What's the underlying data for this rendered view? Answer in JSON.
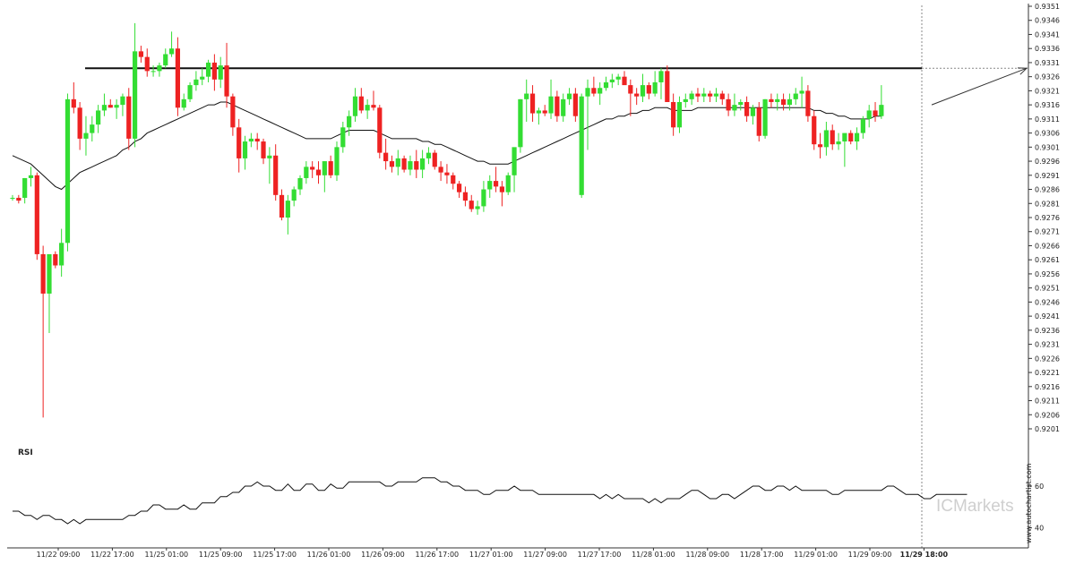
{
  "colors": {
    "bull": "#33dd33",
    "bear": "#ee2222",
    "ma": "#111111",
    "level": "#111111",
    "axis": "#333333",
    "grid_dash": "#888888",
    "brand": "#cfcfcf"
  },
  "brand": {
    "name": "ICMarkets",
    "vertical_text": "www.autochartist.com"
  },
  "chart_data": [
    {
      "type": "candlestick",
      "title": "",
      "price_axis": {
        "range": [
          0.9201,
          0.9351
        ],
        "ticks": [
          "0.9351",
          "0.9346",
          "0.9341",
          "0.9336",
          "0.9331",
          "0.9326",
          "0.9321",
          "0.9316",
          "0.9311",
          "0.9306",
          "0.9301",
          "0.9296",
          "0.9291",
          "0.9286",
          "0.9281",
          "0.9276",
          "0.9271",
          "0.9266",
          "0.9261",
          "0.9256",
          "0.9251",
          "0.9246",
          "0.9241",
          "0.9236",
          "0.9231",
          "0.9226",
          "0.9221",
          "0.9216",
          "0.9211",
          "0.9206",
          "0.9201"
        ]
      },
      "time_axis": {
        "ticks": [
          "11/22 09:00",
          "11/22 17:00",
          "11/25 01:00",
          "11/25 09:00",
          "11/25 17:00",
          "11/26 01:00",
          "11/26 09:00",
          "11/26 17:00",
          "11/27 01:00",
          "11/27 09:00",
          "11/27 17:00",
          "11/28 01:00",
          "11/28 09:00",
          "11/28 17:00",
          "11/29 01:00",
          "11/29 09:00",
          "11/29 18:00"
        ],
        "highlight": "11/29 18:00"
      },
      "resistance_level": 0.9329,
      "projection": {
        "from": 0.9316,
        "to": 0.9329
      },
      "candles": [
        [
          0.9283,
          0.9284,
          0.9282,
          0.9283
        ],
        [
          0.9283,
          0.9284,
          0.9281,
          0.9282
        ],
        [
          0.9283,
          0.929,
          0.9281,
          0.929
        ],
        [
          0.929,
          0.9294,
          0.9287,
          0.9291
        ],
        [
          0.9291,
          0.9292,
          0.9261,
          0.9263
        ],
        [
          0.9263,
          0.9266,
          0.9205,
          0.9249
        ],
        [
          0.9249,
          0.9262,
          0.9235,
          0.9263
        ],
        [
          0.9263,
          0.9264,
          0.9258,
          0.9259
        ],
        [
          0.9259,
          0.9272,
          0.9255,
          0.9267
        ],
        [
          0.9267,
          0.932,
          0.9264,
          0.9318
        ],
        [
          0.9318,
          0.9324,
          0.9313,
          0.9315
        ],
        [
          0.9315,
          0.9317,
          0.93,
          0.9304
        ],
        [
          0.9304,
          0.9312,
          0.9298,
          0.9306
        ],
        [
          0.9306,
          0.9312,
          0.9303,
          0.9309
        ],
        [
          0.9309,
          0.9316,
          0.9306,
          0.9314
        ],
        [
          0.9314,
          0.932,
          0.9312,
          0.9316
        ],
        [
          0.9316,
          0.9318,
          0.9315,
          0.9315
        ],
        [
          0.9315,
          0.9318,
          0.9311,
          0.9316
        ],
        [
          0.9316,
          0.932,
          0.9312,
          0.9319
        ],
        [
          0.9319,
          0.9322,
          0.93,
          0.9304
        ],
        [
          0.9304,
          0.9345,
          0.9301,
          0.9335
        ],
        [
          0.9335,
          0.9337,
          0.9331,
          0.9333
        ],
        [
          0.9333,
          0.9336,
          0.9326,
          0.9328
        ],
        [
          0.9328,
          0.933,
          0.9326,
          0.9328
        ],
        [
          0.9328,
          0.9331,
          0.9326,
          0.933
        ],
        [
          0.933,
          0.9336,
          0.9329,
          0.9334
        ],
        [
          0.9334,
          0.9342,
          0.9333,
          0.9336
        ],
        [
          0.9336,
          0.934,
          0.9312,
          0.9315
        ],
        [
          0.9315,
          0.932,
          0.9314,
          0.9318
        ],
        [
          0.9318,
          0.9324,
          0.9317,
          0.9323
        ],
        [
          0.9323,
          0.9328,
          0.9321,
          0.9325
        ],
        [
          0.9325,
          0.9329,
          0.9323,
          0.9326
        ],
        [
          0.9326,
          0.9332,
          0.9324,
          0.9331
        ],
        [
          0.9331,
          0.9334,
          0.9321,
          0.9325
        ],
        [
          0.9325,
          0.9333,
          0.9322,
          0.933
        ],
        [
          0.933,
          0.9338,
          0.9315,
          0.9319
        ],
        [
          0.9319,
          0.932,
          0.9305,
          0.9308
        ],
        [
          0.9308,
          0.9311,
          0.9292,
          0.9297
        ],
        [
          0.9297,
          0.9305,
          0.9293,
          0.9303
        ],
        [
          0.9303,
          0.9306,
          0.9301,
          0.9304
        ],
        [
          0.9304,
          0.9306,
          0.93,
          0.9303
        ],
        [
          0.9303,
          0.9304,
          0.9295,
          0.9297
        ],
        [
          0.9297,
          0.9301,
          0.9288,
          0.9298
        ],
        [
          0.9298,
          0.9302,
          0.9282,
          0.9284
        ],
        [
          0.9284,
          0.9286,
          0.9275,
          0.9276
        ],
        [
          0.9276,
          0.9284,
          0.927,
          0.9282
        ],
        [
          0.9282,
          0.9287,
          0.928,
          0.9286
        ],
        [
          0.9286,
          0.9291,
          0.9284,
          0.929
        ],
        [
          0.929,
          0.9296,
          0.9288,
          0.9294
        ],
        [
          0.9294,
          0.9296,
          0.929,
          0.9293
        ],
        [
          0.9293,
          0.9296,
          0.9288,
          0.9291
        ],
        [
          0.9291,
          0.9296,
          0.9285,
          0.9296
        ],
        [
          0.9296,
          0.9298,
          0.929,
          0.9291
        ],
        [
          0.9291,
          0.9303,
          0.9289,
          0.9301
        ],
        [
          0.9301,
          0.931,
          0.9299,
          0.9308
        ],
        [
          0.9308,
          0.9314,
          0.9305,
          0.9312
        ],
        [
          0.9312,
          0.9322,
          0.931,
          0.9319
        ],
        [
          0.9319,
          0.9322,
          0.9313,
          0.9314
        ],
        [
          0.9314,
          0.9318,
          0.9311,
          0.9316
        ],
        [
          0.9316,
          0.9321,
          0.9314,
          0.9315
        ],
        [
          0.9315,
          0.9316,
          0.9297,
          0.9299
        ],
        [
          0.9299,
          0.9304,
          0.9293,
          0.9296
        ],
        [
          0.9296,
          0.9298,
          0.9292,
          0.9294
        ],
        [
          0.9294,
          0.93,
          0.9291,
          0.9297
        ],
        [
          0.9297,
          0.9298,
          0.9292,
          0.9293
        ],
        [
          0.9293,
          0.9298,
          0.9291,
          0.9296
        ],
        [
          0.9296,
          0.93,
          0.929,
          0.9293
        ],
        [
          0.9293,
          0.93,
          0.929,
          0.9297
        ],
        [
          0.9297,
          0.9301,
          0.9295,
          0.9299
        ],
        [
          0.9299,
          0.93,
          0.9293,
          0.9294
        ],
        [
          0.9294,
          0.9296,
          0.9289,
          0.9292
        ],
        [
          0.9292,
          0.9295,
          0.9288,
          0.9291
        ],
        [
          0.9291,
          0.9292,
          0.9286,
          0.9288
        ],
        [
          0.9288,
          0.9289,
          0.9283,
          0.9285
        ],
        [
          0.9285,
          0.9287,
          0.928,
          0.9282
        ],
        [
          0.9282,
          0.9284,
          0.9278,
          0.9279
        ],
        [
          0.9279,
          0.9282,
          0.9277,
          0.928
        ],
        [
          0.928,
          0.9289,
          0.9278,
          0.9286
        ],
        [
          0.9286,
          0.9291,
          0.9283,
          0.9289
        ],
        [
          0.9289,
          0.9294,
          0.9285,
          0.9287
        ],
        [
          0.9287,
          0.9289,
          0.928,
          0.9285
        ],
        [
          0.9285,
          0.9292,
          0.9284,
          0.9291
        ],
        [
          0.9291,
          0.93,
          0.9285,
          0.9301
        ],
        [
          0.9301,
          0.9318,
          0.9299,
          0.9318
        ],
        [
          0.9318,
          0.9325,
          0.931,
          0.932
        ],
        [
          0.932,
          0.9323,
          0.931,
          0.9313
        ],
        [
          0.9313,
          0.9315,
          0.9309,
          0.9314
        ],
        [
          0.9314,
          0.9316,
          0.9312,
          0.9313
        ],
        [
          0.9313,
          0.9325,
          0.9311,
          0.9319
        ],
        [
          0.9319,
          0.9321,
          0.931,
          0.9312
        ],
        [
          0.9312,
          0.932,
          0.931,
          0.9318
        ],
        [
          0.9318,
          0.9322,
          0.9316,
          0.932
        ],
        [
          0.932,
          0.9322,
          0.931,
          0.9312
        ],
        [
          0.9284,
          0.932,
          0.9283,
          0.9319
        ],
        [
          0.9319,
          0.9325,
          0.93,
          0.9322
        ],
        [
          0.9322,
          0.9326,
          0.9319,
          0.932
        ],
        [
          0.932,
          0.9324,
          0.9316,
          0.9322
        ],
        [
          0.9322,
          0.9326,
          0.9321,
          0.9324
        ],
        [
          0.9324,
          0.9327,
          0.9322,
          0.9325
        ],
        [
          0.9325,
          0.9327,
          0.9323,
          0.9326
        ],
        [
          0.9326,
          0.9328,
          0.9324,
          0.9323
        ],
        [
          0.9323,
          0.9325,
          0.9312,
          0.932
        ],
        [
          0.932,
          0.9322,
          0.9316,
          0.9319
        ],
        [
          0.9319,
          0.9327,
          0.9317,
          0.9323
        ],
        [
          0.9323,
          0.9324,
          0.9318,
          0.932
        ],
        [
          0.932,
          0.9328,
          0.9319,
          0.9324
        ],
        [
          0.9324,
          0.9329,
          0.9318,
          0.9328
        ],
        [
          0.9328,
          0.933,
          0.9317,
          0.9317
        ],
        [
          0.9317,
          0.932,
          0.9305,
          0.9308
        ],
        [
          0.9308,
          0.9319,
          0.9306,
          0.9317
        ],
        [
          0.9317,
          0.932,
          0.9315,
          0.9318
        ],
        [
          0.9318,
          0.9321,
          0.9316,
          0.932
        ],
        [
          0.932,
          0.9322,
          0.9317,
          0.9319
        ],
        [
          0.9319,
          0.9322,
          0.9317,
          0.932
        ],
        [
          0.932,
          0.9321,
          0.9317,
          0.9319
        ],
        [
          0.9319,
          0.9322,
          0.9317,
          0.932
        ],
        [
          0.932,
          0.9321,
          0.9316,
          0.9318
        ],
        [
          0.9318,
          0.932,
          0.9312,
          0.9314
        ],
        [
          0.9314,
          0.932,
          0.9312,
          0.9316
        ],
        [
          0.9316,
          0.9318,
          0.9314,
          0.9317
        ],
        [
          0.9317,
          0.9319,
          0.931,
          0.9312
        ],
        [
          0.9312,
          0.9316,
          0.9309,
          0.9315
        ],
        [
          0.9315,
          0.9317,
          0.9303,
          0.9305
        ],
        [
          0.9305,
          0.9318,
          0.9304,
          0.9318
        ],
        [
          0.9318,
          0.932,
          0.9315,
          0.9317
        ],
        [
          0.9317,
          0.932,
          0.9314,
          0.9318
        ],
        [
          0.9318,
          0.932,
          0.9314,
          0.9316
        ],
        [
          0.9316,
          0.932,
          0.9314,
          0.9318
        ],
        [
          0.9318,
          0.9322,
          0.9316,
          0.932
        ],
        [
          0.932,
          0.9326,
          0.9315,
          0.9321
        ],
        [
          0.9321,
          0.9323,
          0.931,
          0.9312
        ],
        [
          0.9312,
          0.9314,
          0.93,
          0.9302
        ],
        [
          0.9302,
          0.9306,
          0.9297,
          0.9301
        ],
        [
          0.9301,
          0.931,
          0.9298,
          0.9307
        ],
        [
          0.9307,
          0.9309,
          0.93,
          0.9302
        ],
        [
          0.9302,
          0.9306,
          0.93,
          0.9303
        ],
        [
          0.9303,
          0.9305,
          0.9294,
          0.9306
        ],
        [
          0.9306,
          0.9307,
          0.9302,
          0.9303
        ],
        [
          0.9303,
          0.9308,
          0.93,
          0.9306
        ],
        [
          0.9306,
          0.9312,
          0.9304,
          0.9311
        ],
        [
          0.9311,
          0.9316,
          0.9308,
          0.9314
        ],
        [
          0.9314,
          0.9317,
          0.931,
          0.9312
        ],
        [
          0.9312,
          0.9323,
          0.9311,
          0.9316
        ]
      ],
      "moving_average": [
        0.9298,
        0.9297,
        0.9296,
        0.9295,
        0.9293,
        0.9291,
        0.9289,
        0.9287,
        0.9286,
        0.9288,
        0.929,
        0.9292,
        0.9293,
        0.9294,
        0.9295,
        0.9296,
        0.9297,
        0.9298,
        0.93,
        0.9301,
        0.9303,
        0.9304,
        0.9306,
        0.9307,
        0.9308,
        0.9309,
        0.931,
        0.9311,
        0.9312,
        0.9313,
        0.9314,
        0.9315,
        0.9316,
        0.9316,
        0.9317,
        0.9317,
        0.9316,
        0.9315,
        0.9314,
        0.9313,
        0.9312,
        0.9311,
        0.931,
        0.9309,
        0.9308,
        0.9307,
        0.9306,
        0.9305,
        0.9304,
        0.9304,
        0.9304,
        0.9304,
        0.9304,
        0.9305,
        0.9306,
        0.9307,
        0.9307,
        0.9307,
        0.9307,
        0.9307,
        0.9306,
        0.9305,
        0.9304,
        0.9304,
        0.9304,
        0.9304,
        0.9304,
        0.9303,
        0.9303,
        0.9302,
        0.9302,
        0.9301,
        0.93,
        0.9299,
        0.9298,
        0.9297,
        0.9296,
        0.9296,
        0.9295,
        0.9295,
        0.9295,
        0.9295,
        0.9296,
        0.9297,
        0.9298,
        0.9299,
        0.93,
        0.9301,
        0.9302,
        0.9303,
        0.9304,
        0.9305,
        0.9306,
        0.9307,
        0.9308,
        0.9309,
        0.931,
        0.9311,
        0.9311,
        0.9312,
        0.9312,
        0.9313,
        0.9313,
        0.9314,
        0.9314,
        0.9315,
        0.9315,
        0.9315,
        0.9314,
        0.9314,
        0.9314,
        0.9314,
        0.9315,
        0.9315,
        0.9315,
        0.9315,
        0.9315,
        0.9315,
        0.9315,
        0.9315,
        0.9315,
        0.9315,
        0.9315,
        0.9315,
        0.9315,
        0.9315,
        0.9315,
        0.9315,
        0.9315,
        0.9315,
        0.9315,
        0.9314,
        0.9314,
        0.9313,
        0.9313,
        0.9312,
        0.9312,
        0.9311,
        0.9311,
        0.9311,
        0.9311,
        0.9312,
        0.9312
      ]
    },
    {
      "type": "line",
      "title": "RSI",
      "y_ticks": [
        "60",
        "40"
      ],
      "ylim": [
        33,
        72
      ],
      "values": [
        48,
        48,
        46,
        46,
        44,
        46,
        46,
        44,
        44,
        42,
        44,
        42,
        44,
        44,
        44,
        44,
        44,
        44,
        44,
        46,
        46,
        48,
        48,
        51,
        51,
        49,
        49,
        49,
        51,
        49,
        49,
        52,
        52,
        52,
        55,
        55,
        57,
        57,
        60,
        60,
        62,
        60,
        60,
        58,
        58,
        61,
        58,
        58,
        61,
        61,
        58,
        58,
        61,
        59,
        59,
        62,
        62,
        62,
        62,
        62,
        62,
        60,
        60,
        62,
        62,
        62,
        62,
        64,
        64,
        64,
        62,
        62,
        60,
        60,
        58,
        58,
        58,
        56,
        56,
        58,
        58,
        58,
        60,
        58,
        58,
        58,
        56,
        56,
        56,
        56,
        56,
        56,
        56,
        56,
        56,
        56,
        54,
        56,
        54,
        56,
        54,
        54,
        54,
        54,
        52,
        54,
        52,
        54,
        54,
        54,
        56,
        58,
        58,
        56,
        54,
        54,
        56,
        56,
        54,
        56,
        58,
        60,
        60,
        58,
        58,
        60,
        60,
        58,
        60,
        58,
        58,
        58,
        58,
        58,
        56,
        56,
        58,
        58,
        58,
        58,
        58,
        58,
        58,
        60,
        60,
        58,
        56,
        56,
        56,
        54,
        54,
        56,
        56,
        56,
        56,
        56,
        56
      ]
    }
  ]
}
